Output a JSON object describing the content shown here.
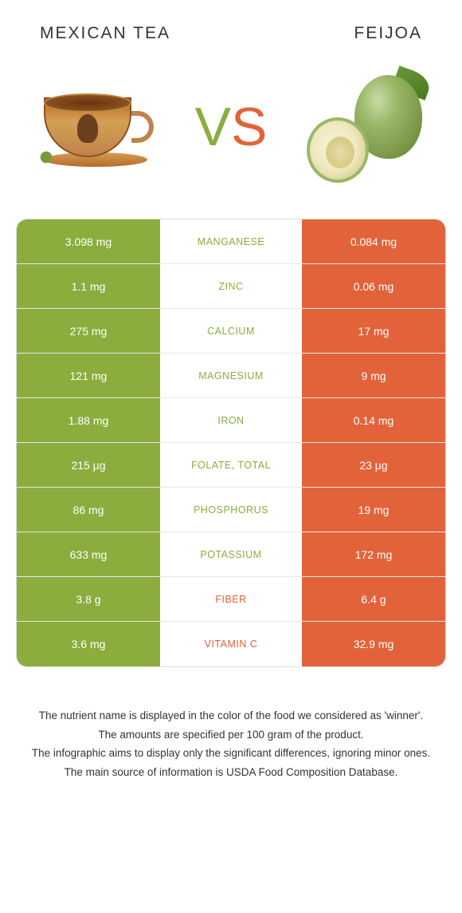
{
  "header": {
    "left_title": "Mexican tea",
    "right_title": "Feijoa"
  },
  "vs": {
    "v": "V",
    "s": "S"
  },
  "colors": {
    "left": "#8aad3e",
    "right": "#e2633a"
  },
  "rows": [
    {
      "left": "3.098 mg",
      "label": "Manganese",
      "right": "0.084 mg",
      "winner": "left"
    },
    {
      "left": "1.1 mg",
      "label": "Zinc",
      "right": "0.06 mg",
      "winner": "left"
    },
    {
      "left": "275 mg",
      "label": "Calcium",
      "right": "17 mg",
      "winner": "left"
    },
    {
      "left": "121 mg",
      "label": "Magnesium",
      "right": "9 mg",
      "winner": "left"
    },
    {
      "left": "1.88 mg",
      "label": "Iron",
      "right": "0.14 mg",
      "winner": "left"
    },
    {
      "left": "215 µg",
      "label": "Folate, total",
      "right": "23 µg",
      "winner": "left"
    },
    {
      "left": "86 mg",
      "label": "Phosphorus",
      "right": "19 mg",
      "winner": "left"
    },
    {
      "left": "633 mg",
      "label": "Potassium",
      "right": "172 mg",
      "winner": "left"
    },
    {
      "left": "3.8 g",
      "label": "Fiber",
      "right": "6.4 g",
      "winner": "right"
    },
    {
      "left": "3.6 mg",
      "label": "Vitamin C",
      "right": "32.9 mg",
      "winner": "right"
    }
  ],
  "footnotes": [
    "The nutrient name is displayed in the color of the food we considered as 'winner'.",
    "The amounts are specified per 100 gram of the product.",
    "The infographic aims to display only the significant differences, ignoring minor ones.",
    "The main source of information is USDA Food Composition Database."
  ]
}
